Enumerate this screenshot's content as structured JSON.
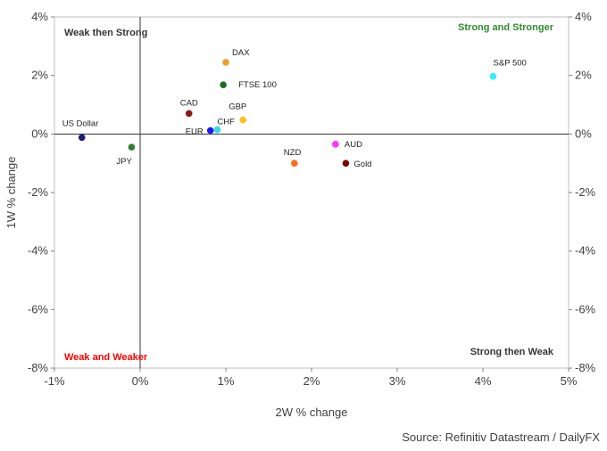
{
  "chart_data": {
    "type": "scatter",
    "title": "",
    "xlabel": "2W % change",
    "ylabel": "1W % change",
    "xlim": [
      -1,
      5
    ],
    "ylim": [
      -8,
      4
    ],
    "x_ticks": [
      "-1%",
      "0%",
      "1%",
      "2%",
      "3%",
      "4%",
      "5%"
    ],
    "y_ticks": [
      "4%",
      "2%",
      "0%",
      "-2%",
      "-4%",
      "-6%",
      "-8%"
    ],
    "grid": false,
    "points": [
      {
        "label": "US Dollar",
        "x": -0.68,
        "y": -0.12,
        "color": "#1f1f7a"
      },
      {
        "label": "JPY",
        "x": -0.1,
        "y": -0.45,
        "color": "#2e7d32"
      },
      {
        "label": "CAD",
        "x": 0.57,
        "y": 0.7,
        "color": "#8b1a1a"
      },
      {
        "label": "EUR",
        "x": 0.82,
        "y": 0.12,
        "color": "#1a1aff"
      },
      {
        "label": "CHF",
        "x": 0.9,
        "y": 0.15,
        "color": "#33dddd"
      },
      {
        "label": "DAX",
        "x": 1.0,
        "y": 2.45,
        "color": "#f0a020"
      },
      {
        "label": "FTSE 100",
        "x": 0.97,
        "y": 1.68,
        "color": "#1e6b1e"
      },
      {
        "label": "GBP",
        "x": 1.2,
        "y": 0.48,
        "color": "#ffc020"
      },
      {
        "label": "NZD",
        "x": 1.8,
        "y": -1.0,
        "color": "#ff6a1a"
      },
      {
        "label": "AUD",
        "x": 2.28,
        "y": -0.35,
        "color": "#ff33ff"
      },
      {
        "label": "Gold",
        "x": 2.4,
        "y": -1.0,
        "color": "#7b0000"
      },
      {
        "label": "S&P 500",
        "x": 4.12,
        "y": 1.97,
        "color": "#33eeff"
      }
    ],
    "quadrants": {
      "top_left": {
        "text": "Weak then Strong",
        "color": "#333333"
      },
      "top_right": {
        "text": "Strong and Stronger",
        "color": "#2e8b2e"
      },
      "bottom_left": {
        "text": "Weak and Weaker",
        "color": "#ff0000"
      },
      "bottom_right": {
        "text": "Strong then Weak",
        "color": "#333333"
      }
    },
    "source": "Source: Refinitiv Datastream / DailyFX"
  }
}
